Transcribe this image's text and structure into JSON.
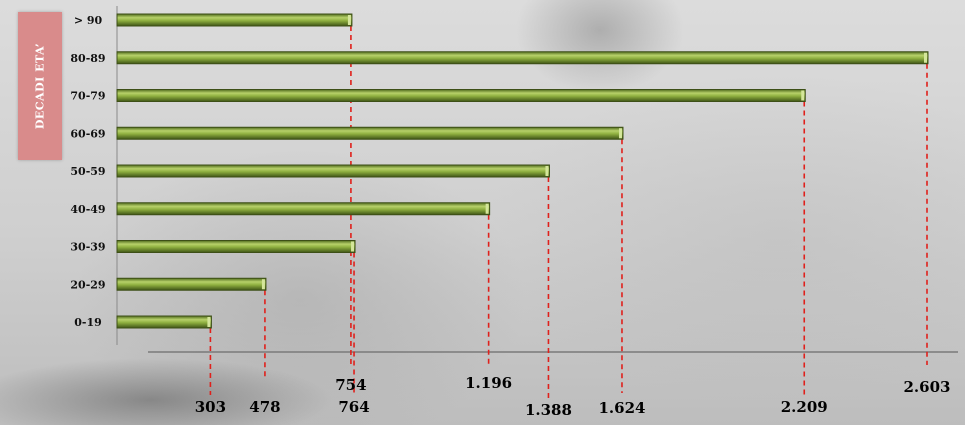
{
  "chart_data": {
    "type": "bar",
    "orientation": "horizontal",
    "ylabel": "DECADI ETA’",
    "categories": [
      "0-19",
      "20-29",
      "30-39",
      "40-49",
      "50-59",
      "60-69",
      "70-79",
      "80-89",
      "> 90"
    ],
    "values": [
      303,
      478,
      764,
      1196,
      1388,
      1624,
      2209,
      2603,
      754
    ],
    "value_labels": [
      "303",
      "478",
      "764",
      "1.196",
      "1.388",
      "1.624",
      "2.209",
      "2.603",
      "754"
    ],
    "xlim": [
      0,
      2700
    ],
    "grid": false,
    "legend": "none",
    "colors": {
      "bar_fill": "#7a9a34",
      "bar_highlight": "#b7d16a",
      "bar_edge": "#3d4f17",
      "leader_line": "#e0201b",
      "badge_bg": "#d98b8b"
    }
  }
}
